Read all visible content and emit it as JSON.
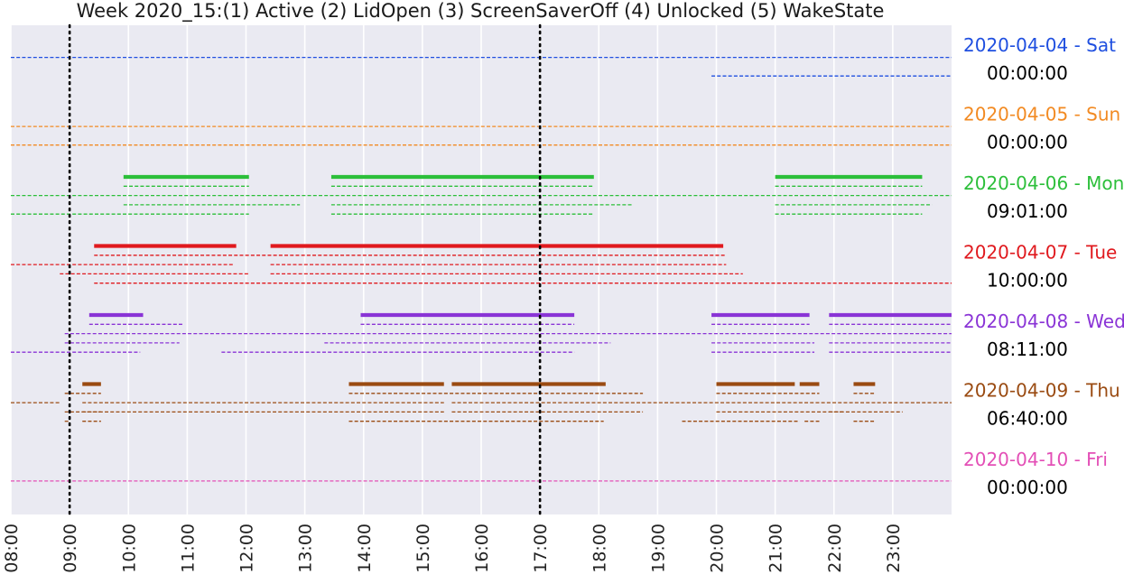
{
  "chart_data": {
    "type": "timeline",
    "title": "Week 2020_15:(1) Active (2) LidOpen (3) ScreenSaverOff (4) Unlocked (5) WakeState",
    "x_range": [
      "08:00",
      "24:00"
    ],
    "x_ticks": [
      "08:00",
      "09:00",
      "10:00",
      "11:00",
      "12:00",
      "13:00",
      "14:00",
      "15:00",
      "16:00",
      "17:00",
      "18:00",
      "19:00",
      "20:00",
      "21:00",
      "22:00",
      "23:00"
    ],
    "reference_lines": [
      "09:00",
      "17:00"
    ],
    "grid": true,
    "track_order": [
      "Active",
      "LidOpen",
      "ScreenSaverOff",
      "Unlocked",
      "WakeState"
    ],
    "days": [
      {
        "label": "2020-04-04 - Sat",
        "duration": "00:00:00",
        "color": "#1f4fe0",
        "tracks": {
          "Active": [],
          "LidOpen": [],
          "ScreenSaverOff": [
            [
              "08:00",
              "24:00"
            ]
          ],
          "Unlocked": [],
          "WakeState": [
            [
              "19:55",
              "24:00"
            ]
          ]
        }
      },
      {
        "label": "2020-04-05 - Sun",
        "duration": "00:00:00",
        "color": "#f28a22",
        "tracks": {
          "Active": [],
          "LidOpen": [],
          "ScreenSaverOff": [
            [
              "08:00",
              "24:00"
            ]
          ],
          "Unlocked": [],
          "WakeState": [
            [
              "08:00",
              "24:00"
            ]
          ]
        }
      },
      {
        "label": "2020-04-06 - Mon",
        "duration": "09:01:00",
        "color": "#2cbf3a",
        "tracks": {
          "Active": [
            [
              "09:55",
              "12:03"
            ],
            [
              "13:27",
              "17:55"
            ],
            [
              "21:00",
              "23:30"
            ]
          ],
          "LidOpen": [
            [
              "09:55",
              "12:03"
            ],
            [
              "13:27",
              "17:55"
            ],
            [
              "21:00",
              "23:30"
            ]
          ],
          "ScreenSaverOff": [
            [
              "08:00",
              "24:00"
            ]
          ],
          "Unlocked": [
            [
              "09:55",
              "12:55"
            ],
            [
              "13:27",
              "18:35"
            ],
            [
              "21:00",
              "23:40"
            ]
          ],
          "WakeState": [
            [
              "08:00",
              "12:03"
            ],
            [
              "13:27",
              "17:55"
            ],
            [
              "21:00",
              "23:30"
            ]
          ]
        }
      },
      {
        "label": "2020-04-07 - Tue",
        "duration": "10:00:00",
        "color": "#e0191e",
        "tracks": {
          "Active": [
            [
              "09:25",
              "11:50"
            ],
            [
              "12:25",
              "20:07"
            ]
          ],
          "LidOpen": [
            [
              "09:25",
              "20:10"
            ]
          ],
          "ScreenSaverOff": [
            [
              "08:00",
              "11:47"
            ],
            [
              "12:25",
              "20:10"
            ]
          ],
          "Unlocked": [
            [
              "08:50",
              "12:03"
            ],
            [
              "12:25",
              "20:27"
            ]
          ],
          "WakeState": [
            [
              "09:25",
              "24:00"
            ]
          ]
        }
      },
      {
        "label": "2020-04-08 - Wed",
        "duration": "08:11:00",
        "color": "#8a34d6",
        "tracks": {
          "Active": [
            [
              "09:20",
              "10:15"
            ],
            [
              "13:57",
              "17:35"
            ],
            [
              "19:55",
              "21:35"
            ],
            [
              "21:55",
              "24:00"
            ]
          ],
          "LidOpen": [
            [
              "09:20",
              "10:55"
            ],
            [
              "13:57",
              "17:35"
            ],
            [
              "19:55",
              "21:35"
            ],
            [
              "21:55",
              "24:00"
            ]
          ],
          "ScreenSaverOff": [
            [
              "08:55",
              "24:00"
            ]
          ],
          "Unlocked": [
            [
              "08:55",
              "10:52"
            ],
            [
              "13:20",
              "18:12"
            ],
            [
              "19:55",
              "21:40"
            ],
            [
              "21:55",
              "24:00"
            ]
          ],
          "WakeState": [
            [
              "08:00",
              "10:12"
            ],
            [
              "11:35",
              "17:35"
            ],
            [
              "19:55",
              "21:40"
            ],
            [
              "21:55",
              "24:00"
            ]
          ]
        }
      },
      {
        "label": "2020-04-09 - Thu",
        "duration": "06:40:00",
        "color": "#9a4b12",
        "tracks": {
          "Active": [
            [
              "09:13",
              "09:32"
            ],
            [
              "13:45",
              "15:22"
            ],
            [
              "15:30",
              "18:07"
            ],
            [
              "20:00",
              "21:20"
            ],
            [
              "21:25",
              "21:45"
            ],
            [
              "22:20",
              "22:42"
            ]
          ],
          "LidOpen": [
            [
              "08:55",
              "09:32"
            ],
            [
              "13:45",
              "18:45"
            ],
            [
              "20:00",
              "21:45"
            ],
            [
              "22:20",
              "22:42"
            ]
          ],
          "ScreenSaverOff": [
            [
              "08:00",
              "08:50"
            ],
            [
              "09:13",
              "15:22"
            ],
            [
              "15:30",
              "24:00"
            ]
          ],
          "Unlocked": [
            [
              "08:55",
              "09:32"
            ],
            [
              "09:13",
              "15:22"
            ],
            [
              "15:30",
              "18:45"
            ],
            [
              "20:00",
              "22:10"
            ],
            [
              "21:55",
              "23:10"
            ]
          ],
          "WakeState": [
            [
              "08:55",
              "09:00"
            ],
            [
              "09:13",
              "09:32"
            ],
            [
              "13:45",
              "18:05"
            ],
            [
              "19:25",
              "21:25"
            ],
            [
              "21:30",
              "21:45"
            ],
            [
              "22:20",
              "22:42"
            ]
          ]
        }
      },
      {
        "label": "2020-04-10 - Fri",
        "duration": "00:00:00",
        "color": "#e34fb6",
        "tracks": {
          "Active": [],
          "LidOpen": [],
          "ScreenSaverOff": [],
          "Unlocked": [
            [
              "08:00",
              "24:00"
            ]
          ],
          "WakeState": []
        }
      }
    ]
  }
}
